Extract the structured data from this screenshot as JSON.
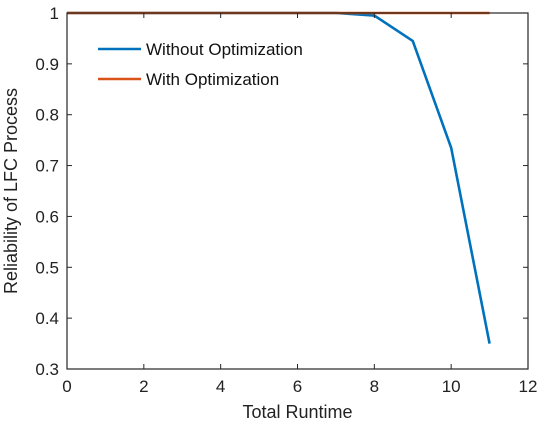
{
  "chart_data": {
    "type": "line",
    "title": "",
    "xlabel": "Total Runtime",
    "ylabel": "Reliability of LFC Process",
    "xlim": [
      0,
      12
    ],
    "ylim": [
      0.3,
      1.0
    ],
    "xticks": [
      0,
      2,
      4,
      6,
      8,
      10,
      12
    ],
    "yticks": [
      0.3,
      0.4,
      0.5,
      0.6,
      0.7,
      0.8,
      0.9,
      1.0
    ],
    "xtick_labels": [
      "0",
      "2",
      "4",
      "6",
      "8",
      "10",
      "12"
    ],
    "ytick_labels": [
      "0.3",
      "0.4",
      "0.5",
      "0.6",
      "0.7",
      "0.8",
      "0.9",
      "1"
    ],
    "grid": false,
    "legend_position": "top-left",
    "series": [
      {
        "name": "Without Optimization",
        "color": "#0072BD",
        "x": [
          0,
          1,
          2,
          3,
          4,
          5,
          6,
          7,
          8,
          9,
          10,
          11
        ],
        "y": [
          1.0,
          1.0,
          1.0,
          1.0,
          1.0,
          1.0,
          1.0,
          1.0,
          0.995,
          0.945,
          0.735,
          0.35
        ]
      },
      {
        "name": "With Optimization",
        "color": "#D95319",
        "x": [
          0,
          1,
          2,
          3,
          4,
          5,
          6,
          7,
          8,
          9,
          10,
          11
        ],
        "y": [
          1.0,
          1.0,
          1.0,
          1.0,
          1.0,
          1.0,
          1.0,
          1.0,
          1.0,
          1.0,
          1.0,
          1.0
        ]
      }
    ]
  }
}
